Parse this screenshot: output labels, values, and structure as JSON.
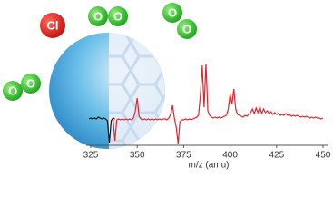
{
  "chart_data": {
    "type": "line",
    "xlabel": "m/z (amu)",
    "annotations": [
      "Cl",
      "O",
      "O",
      "O",
      "O",
      "O",
      "O"
    ],
    "xlim": [
      325,
      450
    ],
    "xticks": [
      325,
      350,
      375,
      400,
      425,
      450
    ],
    "ylim": [
      0,
      100
    ],
    "x": [
      324,
      325,
      326,
      327,
      328,
      329,
      330,
      331,
      332,
      333,
      334,
      335,
      336,
      337,
      338,
      339,
      340,
      341,
      342,
      343,
      344,
      345,
      346,
      347,
      348,
      349,
      350,
      351,
      352,
      353,
      354,
      355,
      356,
      357,
      358,
      359,
      360,
      361,
      362,
      363,
      364,
      365,
      366,
      367,
      368,
      369,
      370,
      371,
      372,
      373,
      374,
      375,
      376,
      377,
      378,
      379,
      380,
      381,
      382,
      383,
      384,
      385,
      386,
      387,
      388,
      389,
      390,
      391,
      392,
      393,
      394,
      395,
      396,
      397,
      398,
      399,
      400,
      401,
      402,
      403,
      404,
      405,
      406,
      407,
      408,
      409,
      410,
      411,
      412,
      413,
      414,
      415,
      416,
      417,
      418,
      419,
      420,
      421,
      422,
      423,
      424,
      425,
      426,
      427,
      428,
      429,
      430,
      431,
      432,
      433,
      434,
      435,
      436,
      437,
      438,
      439,
      440,
      441,
      442,
      443,
      444,
      445,
      446,
      447,
      448,
      449,
      450
    ],
    "series": [
      {
        "color": "#111111",
        "values": [
          29,
          30,
          29,
          30,
          29,
          31,
          30,
          29,
          30,
          29,
          27,
          3,
          27,
          30,
          29,
          null,
          null,
          null,
          null,
          null,
          null,
          null,
          null,
          null,
          null,
          null,
          null,
          null,
          null,
          null,
          null,
          null,
          null,
          null,
          null,
          null,
          null,
          null,
          null,
          null,
          null,
          null,
          null,
          null,
          null,
          null,
          null,
          null,
          null,
          null,
          null,
          null,
          null,
          null,
          null,
          null,
          null,
          null,
          null,
          null,
          null,
          null,
          null,
          null,
          null,
          null,
          null,
          null,
          null,
          null,
          null,
          null,
          null,
          null,
          null,
          null,
          null,
          null,
          null,
          null,
          null,
          null,
          null,
          null,
          null,
          null,
          null,
          null,
          null,
          null,
          null,
          null,
          null,
          null,
          null,
          null,
          null,
          null,
          null,
          null,
          null,
          null,
          null,
          null,
          null,
          null,
          null,
          null,
          null,
          null,
          null,
          null,
          null,
          null,
          null,
          null,
          null,
          null,
          null,
          null,
          null,
          null,
          null,
          null,
          null,
          null,
          null
        ]
      },
      {
        "color": "#e8202a",
        "values": [
          null,
          null,
          null,
          null,
          null,
          null,
          null,
          null,
          null,
          null,
          null,
          null,
          null,
          28,
          5,
          28,
          29,
          28,
          29,
          28,
          29,
          28,
          29,
          28,
          30,
          38,
          52,
          32,
          29,
          28,
          29,
          28,
          29,
          28,
          29,
          28,
          29,
          28,
          29,
          28,
          29,
          29,
          28,
          30,
          34,
          44,
          30,
          20,
          2,
          26,
          28,
          28,
          29,
          28,
          29,
          28,
          29,
          30,
          31,
          33,
          55,
          88,
          42,
          90,
          38,
          33,
          31,
          30,
          31,
          30,
          31,
          30,
          31,
          32,
          33,
          40,
          56,
          45,
          62,
          40,
          34,
          33,
          32,
          31,
          33,
          32,
          34,
          36,
          40,
          35,
          41,
          36,
          42,
          35,
          40,
          36,
          38,
          35,
          37,
          34,
          36,
          34,
          35,
          33,
          34,
          33,
          35,
          33,
          34,
          32,
          33,
          32,
          33,
          32,
          31,
          32,
          31,
          32,
          31,
          30,
          31,
          30,
          31,
          30,
          30,
          29,
          30
        ]
      }
    ]
  }
}
